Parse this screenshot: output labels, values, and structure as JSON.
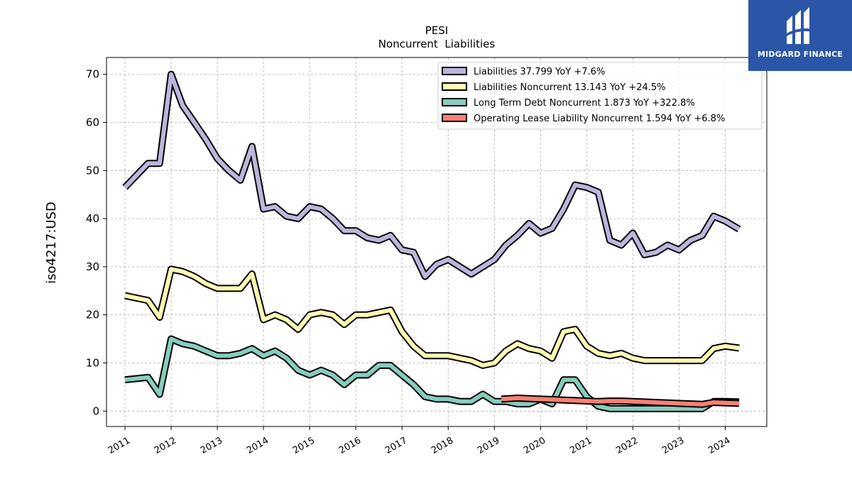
{
  "chart_data": {
    "type": "line",
    "title": "PESI",
    "subtitle": "Noncurrent  Liabilities",
    "ylabel": "iso4217:USD",
    "xlabel": "",
    "xlim": [
      2010.6,
      2024.9
    ],
    "ylim": [
      -3.2,
      73.5
    ],
    "yticks": [
      0,
      10,
      20,
      30,
      40,
      50,
      60,
      70
    ],
    "xticks": [
      "2011",
      "2012",
      "2013",
      "2014",
      "2015",
      "2016",
      "2017",
      "2018",
      "2019",
      "2020",
      "2021",
      "2022",
      "2023",
      "2024"
    ],
    "grid": true,
    "legend_position": "top-right",
    "series": [
      {
        "name": "Liabilities  37.799 YoY +7.6%",
        "color": "#bcb6dc",
        "points": [
          [
            2011.0,
            46.5
          ],
          [
            2011.5,
            51.5
          ],
          [
            2011.75,
            51.5
          ],
          [
            2012.0,
            70.0
          ],
          [
            2012.25,
            63.5
          ],
          [
            2012.5,
            60.0
          ],
          [
            2012.75,
            56.5
          ],
          [
            2013.0,
            52.5
          ],
          [
            2013.25,
            50.0
          ],
          [
            2013.5,
            48.0
          ],
          [
            2013.75,
            55.0
          ],
          [
            2014.0,
            42.0
          ],
          [
            2014.25,
            42.5
          ],
          [
            2014.5,
            40.5
          ],
          [
            2014.75,
            40.0
          ],
          [
            2015.0,
            42.5
          ],
          [
            2015.25,
            42.0
          ],
          [
            2015.5,
            40.0
          ],
          [
            2015.75,
            37.5
          ],
          [
            2016.0,
            37.5
          ],
          [
            2016.25,
            36.0
          ],
          [
            2016.5,
            35.5
          ],
          [
            2016.75,
            36.5
          ],
          [
            2017.0,
            33.5
          ],
          [
            2017.25,
            33.0
          ],
          [
            2017.5,
            28.0
          ],
          [
            2017.75,
            30.5
          ],
          [
            2018.0,
            31.5
          ],
          [
            2018.25,
            30.0
          ],
          [
            2018.5,
            28.5
          ],
          [
            2018.75,
            30.0
          ],
          [
            2019.0,
            31.5
          ],
          [
            2019.25,
            34.5
          ],
          [
            2019.5,
            36.5
          ],
          [
            2019.75,
            39.0
          ],
          [
            2020.0,
            37.0
          ],
          [
            2020.25,
            38.0
          ],
          [
            2020.5,
            42.0
          ],
          [
            2020.75,
            47.0
          ],
          [
            2021.0,
            46.5
          ],
          [
            2021.25,
            45.5
          ],
          [
            2021.5,
            35.5
          ],
          [
            2021.75,
            34.5
          ],
          [
            2022.0,
            37.0
          ],
          [
            2022.25,
            32.5
          ],
          [
            2022.5,
            33.0
          ],
          [
            2022.75,
            34.5
          ],
          [
            2023.0,
            33.5
          ],
          [
            2023.25,
            35.5
          ],
          [
            2023.5,
            36.5
          ],
          [
            2023.75,
            40.5
          ],
          [
            2024.0,
            39.5
          ],
          [
            2024.3,
            37.8
          ]
        ]
      },
      {
        "name": "Liabilities Noncurrent  13.143 YoY +24.5%",
        "color": "#fcfcb4",
        "points": [
          [
            2011.0,
            24.0
          ],
          [
            2011.5,
            23.0
          ],
          [
            2011.75,
            19.5
          ],
          [
            2012.0,
            29.5
          ],
          [
            2012.25,
            29.0
          ],
          [
            2012.5,
            28.0
          ],
          [
            2012.75,
            26.5
          ],
          [
            2013.0,
            25.5
          ],
          [
            2013.25,
            25.5
          ],
          [
            2013.5,
            25.5
          ],
          [
            2013.75,
            28.5
          ],
          [
            2014.0,
            19.0
          ],
          [
            2014.25,
            20.0
          ],
          [
            2014.5,
            19.0
          ],
          [
            2014.75,
            17.0
          ],
          [
            2015.0,
            20.0
          ],
          [
            2015.25,
            20.5
          ],
          [
            2015.5,
            20.0
          ],
          [
            2015.75,
            18.0
          ],
          [
            2016.0,
            20.0
          ],
          [
            2016.25,
            20.0
          ],
          [
            2016.5,
            20.5
          ],
          [
            2016.75,
            21.0
          ],
          [
            2017.0,
            16.5
          ],
          [
            2017.25,
            13.5
          ],
          [
            2017.5,
            11.5
          ],
          [
            2017.75,
            11.5
          ],
          [
            2018.0,
            11.5
          ],
          [
            2018.25,
            11.0
          ],
          [
            2018.5,
            10.5
          ],
          [
            2018.75,
            9.5
          ],
          [
            2019.0,
            10.0
          ],
          [
            2019.25,
            12.5
          ],
          [
            2019.5,
            14.0
          ],
          [
            2019.75,
            13.0
          ],
          [
            2020.0,
            12.5
          ],
          [
            2020.25,
            11.0
          ],
          [
            2020.5,
            16.5
          ],
          [
            2020.75,
            17.0
          ],
          [
            2021.0,
            13.5
          ],
          [
            2021.25,
            12.0
          ],
          [
            2021.5,
            11.5
          ],
          [
            2021.75,
            12.0
          ],
          [
            2022.0,
            11.0
          ],
          [
            2022.25,
            10.5
          ],
          [
            2022.5,
            10.5
          ],
          [
            2022.75,
            10.5
          ],
          [
            2023.0,
            10.5
          ],
          [
            2023.25,
            10.5
          ],
          [
            2023.5,
            10.5
          ],
          [
            2023.75,
            13.0
          ],
          [
            2024.0,
            13.5
          ],
          [
            2024.3,
            13.1
          ]
        ]
      },
      {
        "name": "Long Term Debt Noncurrent  1.873 YoY +322.8%",
        "color": "#86cdbf",
        "points": [
          [
            2011.0,
            6.5
          ],
          [
            2011.5,
            7.0
          ],
          [
            2011.75,
            3.5
          ],
          [
            2012.0,
            15.0
          ],
          [
            2012.25,
            14.0
          ],
          [
            2012.5,
            13.5
          ],
          [
            2012.75,
            12.5
          ],
          [
            2013.0,
            11.5
          ],
          [
            2013.25,
            11.5
          ],
          [
            2013.5,
            12.0
          ],
          [
            2013.75,
            13.0
          ],
          [
            2014.0,
            11.5
          ],
          [
            2014.25,
            12.5
          ],
          [
            2014.5,
            11.0
          ],
          [
            2014.75,
            8.5
          ],
          [
            2015.0,
            7.5
          ],
          [
            2015.25,
            8.5
          ],
          [
            2015.5,
            7.5
          ],
          [
            2015.75,
            5.5
          ],
          [
            2016.0,
            7.5
          ],
          [
            2016.25,
            7.5
          ],
          [
            2016.5,
            9.5
          ],
          [
            2016.75,
            9.5
          ],
          [
            2017.0,
            7.5
          ],
          [
            2017.25,
            5.5
          ],
          [
            2017.5,
            3.0
          ],
          [
            2017.75,
            2.5
          ],
          [
            2018.0,
            2.5
          ],
          [
            2018.25,
            2.0
          ],
          [
            2018.5,
            2.0
          ],
          [
            2018.75,
            3.5
          ],
          [
            2019.0,
            2.0
          ],
          [
            2019.25,
            2.0
          ],
          [
            2019.5,
            1.5
          ],
          [
            2019.75,
            1.5
          ],
          [
            2020.0,
            2.5
          ],
          [
            2020.25,
            1.5
          ],
          [
            2020.5,
            6.5
          ],
          [
            2020.75,
            6.5
          ],
          [
            2021.0,
            3.0
          ],
          [
            2021.25,
            1.0
          ],
          [
            2021.5,
            0.5
          ],
          [
            2021.75,
            0.5
          ],
          [
            2022.0,
            0.5
          ],
          [
            2022.25,
            0.5
          ],
          [
            2022.5,
            0.5
          ],
          [
            2022.75,
            0.5
          ],
          [
            2023.0,
            0.5
          ],
          [
            2023.25,
            0.5
          ],
          [
            2023.5,
            0.5
          ],
          [
            2023.75,
            2.0
          ],
          [
            2024.0,
            2.0
          ],
          [
            2024.3,
            1.9
          ]
        ]
      },
      {
        "name": "Operating Lease Liability Noncurrent  1.594 YoY +6.8%",
        "color": "#f98072",
        "points": [
          [
            2019.15,
            2.5
          ],
          [
            2019.5,
            2.7
          ],
          [
            2019.75,
            2.6
          ],
          [
            2020.0,
            2.5
          ],
          [
            2020.25,
            2.4
          ],
          [
            2020.5,
            2.3
          ],
          [
            2020.75,
            2.2
          ],
          [
            2021.0,
            2.1
          ],
          [
            2021.25,
            2.0
          ],
          [
            2021.5,
            2.1
          ],
          [
            2021.75,
            2.1
          ],
          [
            2022.0,
            2.0
          ],
          [
            2022.25,
            1.9
          ],
          [
            2022.5,
            1.8
          ],
          [
            2022.75,
            1.7
          ],
          [
            2023.0,
            1.6
          ],
          [
            2023.25,
            1.5
          ],
          [
            2023.5,
            1.4
          ],
          [
            2023.75,
            1.8
          ],
          [
            2024.0,
            1.7
          ],
          [
            2024.3,
            1.6
          ]
        ]
      }
    ]
  },
  "logo": {
    "text": "MIDGARD FINANCE",
    "color": "#2b56a8"
  }
}
